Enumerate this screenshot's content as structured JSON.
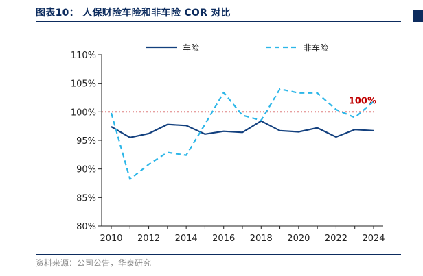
{
  "header": {
    "title": "图表10：  人保财险车险和非车险 COR 对比"
  },
  "footer": {
    "source": "资料来源：公司公告，华泰研究"
  },
  "colors": {
    "brand": "#0d2c5e",
    "series_auto": "#13407e",
    "series_non_auto": "#2cb6e8",
    "reference": "#c00000"
  },
  "chart_data": {
    "type": "line",
    "title": "",
    "xlabel": "",
    "ylabel": "",
    "x": [
      2010,
      2011,
      2012,
      2013,
      2014,
      2015,
      2016,
      2017,
      2018,
      2019,
      2020,
      2021,
      2022,
      2023,
      2024
    ],
    "x_ticks": [
      2010,
      2012,
      2014,
      2016,
      2018,
      2020,
      2022,
      2024
    ],
    "x_tick_labels": [
      "2010",
      "2012",
      "2014",
      "2016",
      "2018",
      "2020",
      "2022",
      "2024"
    ],
    "xlim": [
      2010,
      2024
    ],
    "ylim": [
      80,
      110
    ],
    "y_ticks": [
      80,
      85,
      90,
      95,
      100,
      105,
      110
    ],
    "y_tick_labels": [
      "80%",
      "85%",
      "90%",
      "95%",
      "100%",
      "105%",
      "110%"
    ],
    "series": [
      {
        "name": "车险",
        "style": "solid",
        "values": [
          97.4,
          95.5,
          96.2,
          97.8,
          97.6,
          96.1,
          96.6,
          96.4,
          98.4,
          96.7,
          96.5,
          97.2,
          95.6,
          96.9,
          96.7
        ]
      },
      {
        "name": "非车险",
        "style": "dashed",
        "values": [
          99.8,
          88.2,
          90.8,
          92.9,
          92.4,
          97.8,
          103.4,
          99.4,
          98.5,
          104.0,
          103.3,
          103.3,
          100.4,
          99.0,
          101.8
        ]
      }
    ],
    "reference_line": {
      "value": 100,
      "label": "100%",
      "style": "dotted"
    },
    "legend": {
      "position": "top"
    }
  }
}
